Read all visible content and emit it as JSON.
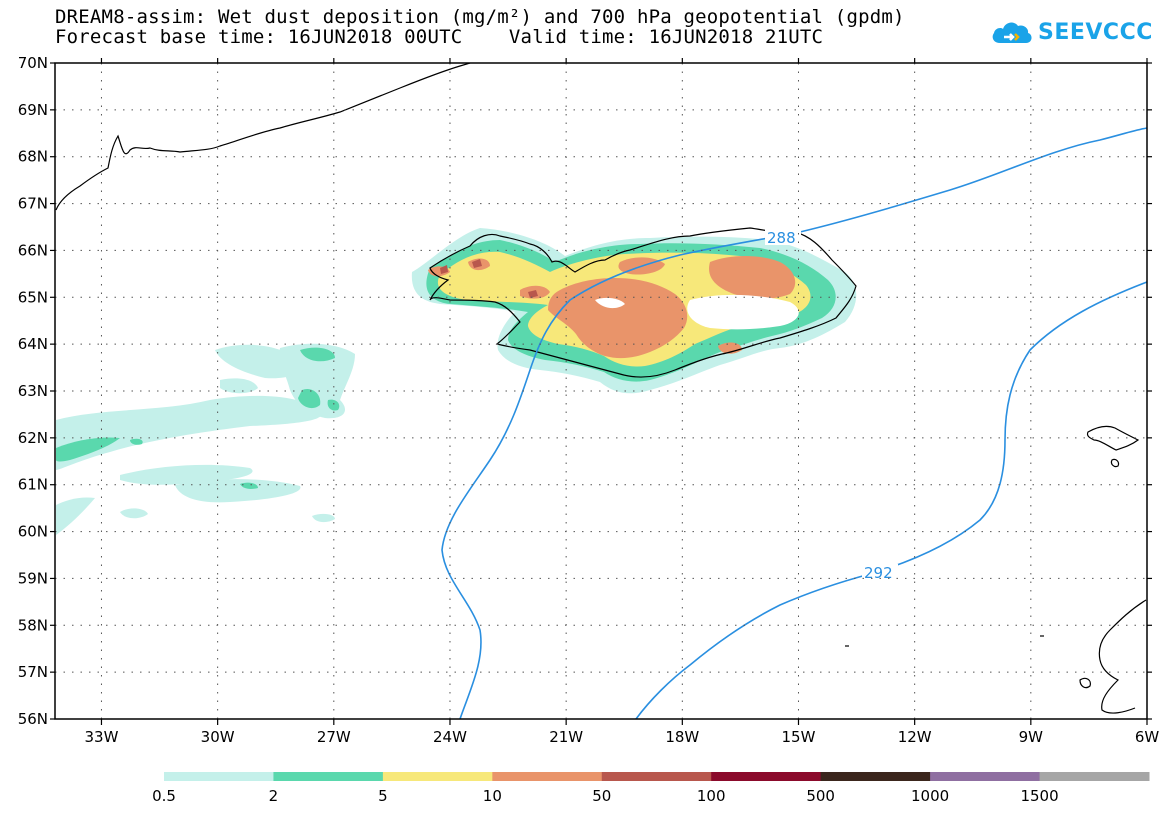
{
  "title": {
    "line1": "DREAM8-assim: Wet dust deposition (mg/m²) and 700 hPa geopotential (gpdm)",
    "line2": "Forecast base time: 16JUN2018 00UTC    Valid time: 16JUN2018 21UTC"
  },
  "logo": {
    "text": "SEEVCCC",
    "icon": "cloud-icon",
    "color": "#1aa3e8"
  },
  "map": {
    "lat_labels": [
      "70N",
      "69N",
      "68N",
      "67N",
      "66N",
      "65N",
      "64N",
      "63N",
      "62N",
      "61N",
      "60N",
      "59N",
      "58N",
      "57N",
      "56N"
    ],
    "lon_labels": [
      "33W",
      "30W",
      "27W",
      "24W",
      "21W",
      "18W",
      "15W",
      "12W",
      "9W",
      "6W"
    ],
    "lat_range": [
      56,
      70
    ],
    "lon_range": [
      -34.2,
      -6
    ],
    "lon_ticks": [
      -33,
      -30,
      -27,
      -24,
      -21,
      -18,
      -15,
      -12,
      -9,
      -6
    ],
    "contours": [
      {
        "value": "288",
        "label": "288"
      },
      {
        "value": "292",
        "label": "292"
      }
    ],
    "contour_color": "#2a8fe0"
  },
  "colorbar": {
    "labels": [
      "0.5",
      "2",
      "5",
      "10",
      "50",
      "100",
      "500",
      "1000",
      "1500"
    ],
    "colors": [
      "#c4f0ea",
      "#5ad8ad",
      "#f7e87a",
      "#e9946a",
      "#b8574d",
      "#8b0a2b",
      "#3b261d",
      "#8f6fa1",
      "#a6a6a6"
    ]
  }
}
